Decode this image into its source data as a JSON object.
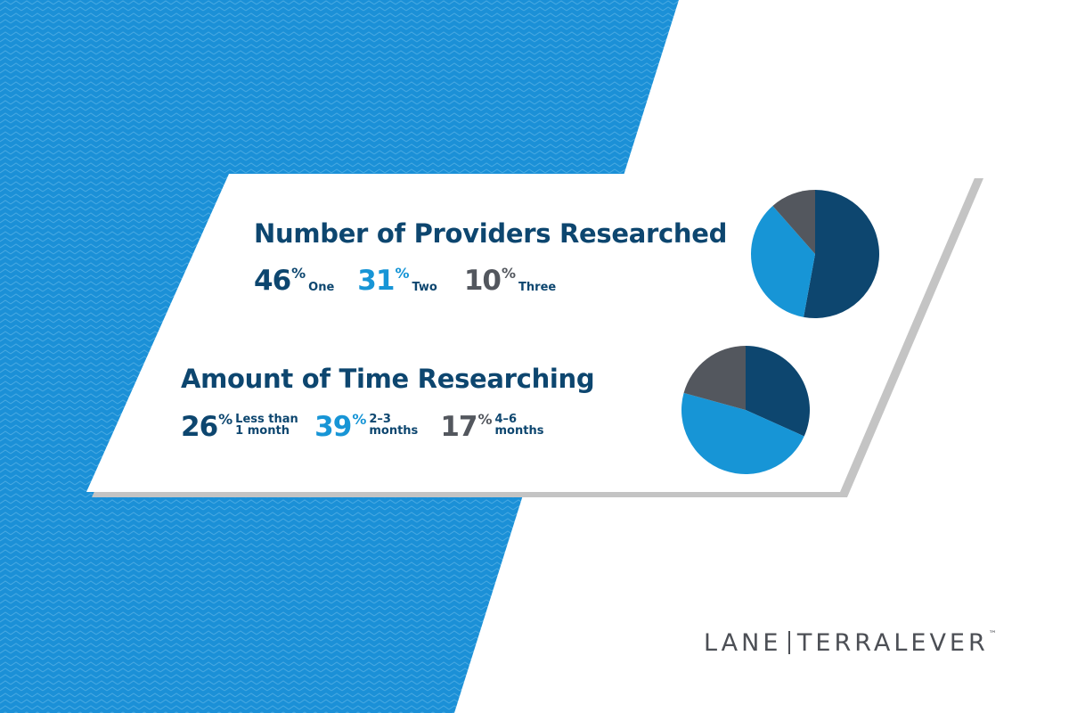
{
  "chart_data": [
    {
      "type": "pie",
      "title": "Number of Providers Researched",
      "categories": [
        "One",
        "Two",
        "Three"
      ],
      "values": [
        46,
        31,
        10
      ],
      "unit": "%",
      "colors": [
        "#0d466f",
        "#1795d6",
        "#53575e"
      ]
    },
    {
      "type": "pie",
      "title": "Amount of Time Researching",
      "categories": [
        "Less than 1 month",
        "2–3 months",
        "4–6 months"
      ],
      "values": [
        26,
        39,
        17
      ],
      "unit": "%",
      "colors": [
        "#0d466f",
        "#1795d6",
        "#53575e"
      ]
    }
  ],
  "logo": {
    "left": "LANE",
    "right": "TERRALEVER",
    "mark": "™"
  }
}
